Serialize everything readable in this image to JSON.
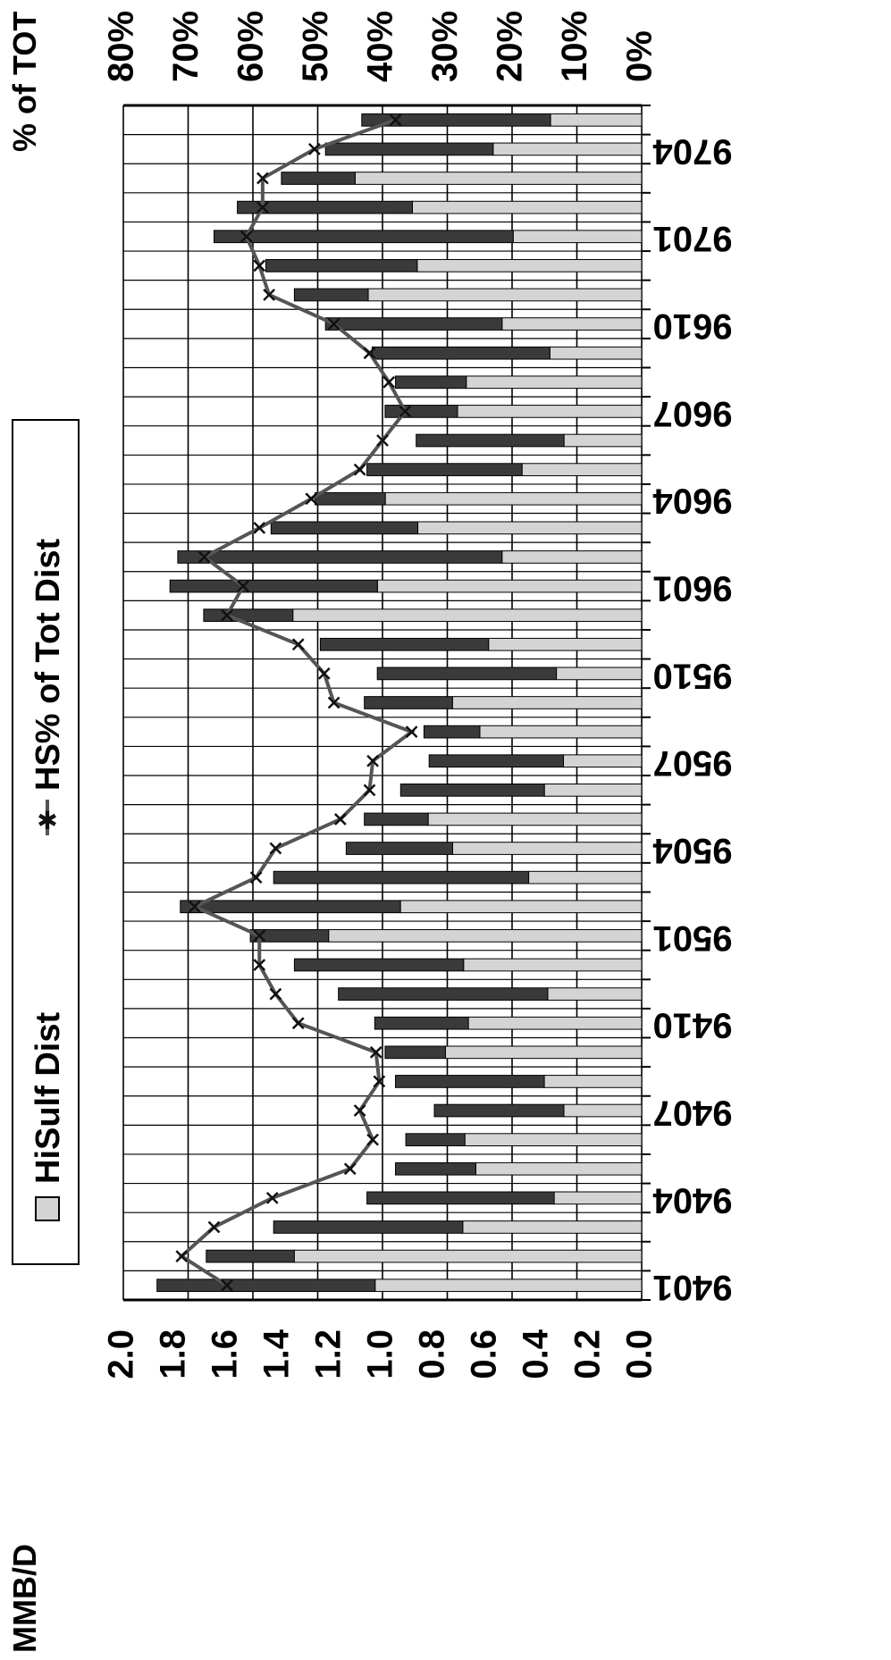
{
  "chart_data": {
    "type": "bar",
    "title": "",
    "y_left_label": "MMB/D",
    "y_right_label": "% of TOT",
    "ylim_left": [
      0,
      2.0
    ],
    "ylim_right": [
      0,
      80
    ],
    "y_left_ticks": [
      "0.0",
      "0.2",
      "0.4",
      "0.6",
      "0.8",
      "1.0",
      "1.2",
      "1.4",
      "1.6",
      "1.8",
      "2.0"
    ],
    "y_right_ticks": [
      "0%",
      "10%",
      "20%",
      "30%",
      "40%",
      "50%",
      "60%",
      "70%",
      "80%"
    ],
    "x_tick_labels": [
      "9401",
      "9404",
      "9407",
      "9410",
      "9501",
      "9504",
      "9507",
      "9510",
      "9601",
      "9604",
      "9607",
      "9610",
      "9701",
      "9704"
    ],
    "legend": {
      "bar_label": "HiSulf Dist",
      "line_label": "HS% of Tot Dist",
      "placement": "top"
    },
    "grid": true,
    "colors": {
      "bar_light": "#d4d4d4",
      "bar_dark": "#3a3a3a",
      "line": "#555555",
      "marker": "#111111"
    },
    "months": [
      "9401",
      "9402",
      "9403",
      "9404",
      "9405",
      "9406",
      "9407",
      "9408",
      "9409",
      "9410",
      "9411",
      "9412",
      "9501",
      "9502",
      "9503",
      "9504",
      "9505",
      "9506",
      "9507",
      "9508",
      "9509",
      "9510",
      "9511",
      "9512",
      "9601",
      "9602",
      "9603",
      "9604",
      "9605",
      "9606",
      "9607",
      "9608",
      "9609",
      "9610",
      "9611",
      "9612",
      "9701",
      "9702",
      "9703",
      "9704",
      "9705"
    ],
    "series": [
      {
        "name": "HiSulf Dist",
        "kind": "bar",
        "values": [
          1.87,
          1.68,
          1.42,
          1.06,
          0.95,
          0.91,
          0.8,
          0.95,
          0.99,
          1.03,
          1.17,
          1.34,
          1.51,
          1.78,
          1.42,
          1.14,
          1.07,
          0.93,
          0.82,
          0.84,
          1.07,
          1.02,
          1.24,
          1.69,
          1.82,
          1.79,
          1.43,
          1.26,
          1.06,
          0.87,
          0.99,
          0.95,
          1.04,
          1.22,
          1.34,
          1.45,
          1.65,
          1.56,
          1.39,
          1.22,
          1.08
        ]
      },
      {
        "name": "HS% of Tot Dist",
        "kind": "line",
        "values": [
          64.0,
          71.0,
          66.0,
          57.0,
          45.0,
          41.5,
          43.5,
          40.5,
          41.0,
          53.0,
          56.5,
          59.0,
          59.0,
          69.0,
          59.5,
          56.5,
          46.5,
          42.0,
          41.5,
          35.5,
          47.5,
          49.0,
          53.0,
          64.0,
          61.5,
          67.5,
          59.0,
          51.0,
          43.5,
          40.0,
          36.5,
          39.0,
          42.0,
          47.5,
          57.5,
          59.0,
          61.0,
          58.5,
          58.5,
          50.5,
          38.0
        ]
      }
    ]
  }
}
